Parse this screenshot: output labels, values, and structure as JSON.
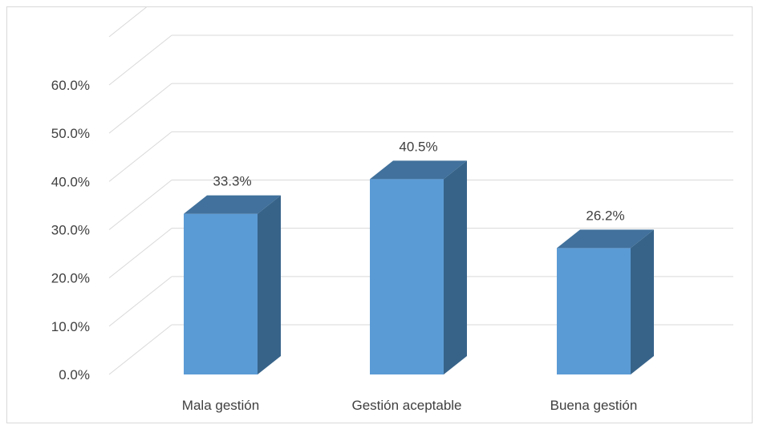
{
  "chart_data": {
    "type": "bar",
    "categories": [
      "Mala gestión",
      "Gestión aceptable",
      "Buena gestión"
    ],
    "values": [
      33.3,
      40.5,
      26.2
    ],
    "data_labels": [
      "33.3%",
      "40.5%",
      "26.2%"
    ],
    "ylim": [
      0,
      60
    ],
    "ytick_values": [
      0,
      10,
      20,
      30,
      40,
      50,
      60
    ],
    "yticks": [
      "0.0%",
      "10.0%",
      "20.0%",
      "30.0%",
      "40.0%",
      "50.0%",
      "60.0%"
    ],
    "grid": true,
    "legend": "none",
    "style": "3d-column",
    "colors": {
      "bar_front": "#5b9bd5",
      "bar_top": "#41719c",
      "bar_side": "#376389",
      "grid": "#d9d9d9",
      "text": "#404040"
    }
  }
}
